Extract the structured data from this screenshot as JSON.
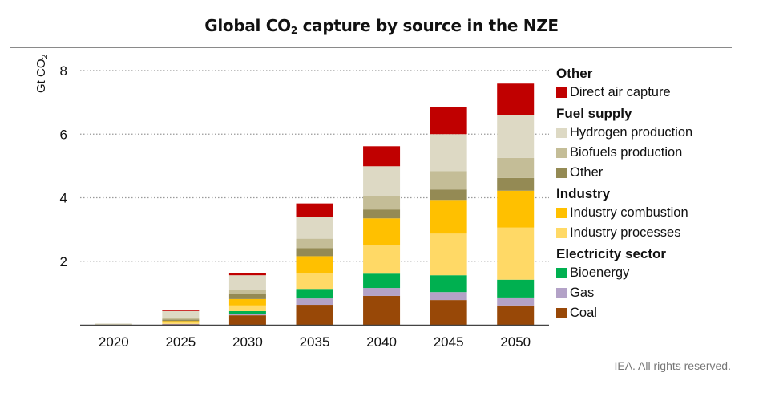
{
  "title": {
    "main": "Global CO",
    "sub": "2",
    "rest": " capture by source in the NZE"
  },
  "footer": "IEA. All rights reserved.",
  "chart_data": {
    "type": "bar",
    "stacked": true,
    "title": "Global CO2 capture by source in the NZE",
    "xlabel": "",
    "ylabel": "Gt CO2",
    "ylim": [
      0,
      8
    ],
    "yticks": [
      2,
      4,
      6,
      8
    ],
    "grid": "horizontal-dotted",
    "legend_position": "right",
    "categories": [
      "2020",
      "2025",
      "2030",
      "2035",
      "2040",
      "2045",
      "2050"
    ],
    "series": [
      {
        "name": "Coal",
        "group": "Electricity sector",
        "color": "#984807",
        "values": [
          0.0,
          0.02,
          0.3,
          0.63,
          0.91,
          0.78,
          0.61
        ]
      },
      {
        "name": "Gas",
        "group": "Electricity sector",
        "color": "#b3a2c7",
        "values": [
          0.0,
          0.01,
          0.05,
          0.2,
          0.25,
          0.25,
          0.25
        ]
      },
      {
        "name": "Bioenergy",
        "group": "Electricity sector",
        "color": "#00b050",
        "values": [
          0.0,
          0.0,
          0.08,
          0.3,
          0.45,
          0.53,
          0.56
        ]
      },
      {
        "name": "Industry processes",
        "group": "Industry",
        "color": "#ffd966",
        "values": [
          0.0,
          0.04,
          0.18,
          0.5,
          0.91,
          1.31,
          1.64
        ]
      },
      {
        "name": "Industry combustion",
        "group": "Industry",
        "color": "#ffc000",
        "values": [
          0.0,
          0.05,
          0.2,
          0.53,
          0.83,
          1.06,
          1.16
        ]
      },
      {
        "name": "Other",
        "group": "Fuel supply",
        "color": "#948a54",
        "values": [
          0.01,
          0.05,
          0.15,
          0.25,
          0.28,
          0.33,
          0.4
        ]
      },
      {
        "name": "Biofuels production",
        "group": "Fuel supply",
        "color": "#c4bd97",
        "values": [
          0.01,
          0.05,
          0.15,
          0.3,
          0.43,
          0.58,
          0.63
        ]
      },
      {
        "name": "Hydrogen production",
        "group": "Fuel supply",
        "color": "#ddd9c4",
        "values": [
          0.02,
          0.22,
          0.45,
          0.68,
          0.93,
          1.16,
          1.36
        ]
      },
      {
        "name": "Direct air capture",
        "group": "Other",
        "color": "#c00000",
        "values": [
          0.0,
          0.01,
          0.08,
          0.43,
          0.63,
          0.86,
          0.98
        ]
      }
    ],
    "legend": [
      {
        "group": "Other",
        "items": [
          "Direct air capture"
        ]
      },
      {
        "group": "Fuel supply",
        "items": [
          "Hydrogen production",
          "Biofuels production",
          "Other"
        ]
      },
      {
        "group": "Industry",
        "items": [
          "Industry combustion",
          "Industry processes"
        ]
      },
      {
        "group": "Electricity sector",
        "items": [
          "Bioenergy",
          "Gas",
          "Coal"
        ]
      }
    ]
  }
}
